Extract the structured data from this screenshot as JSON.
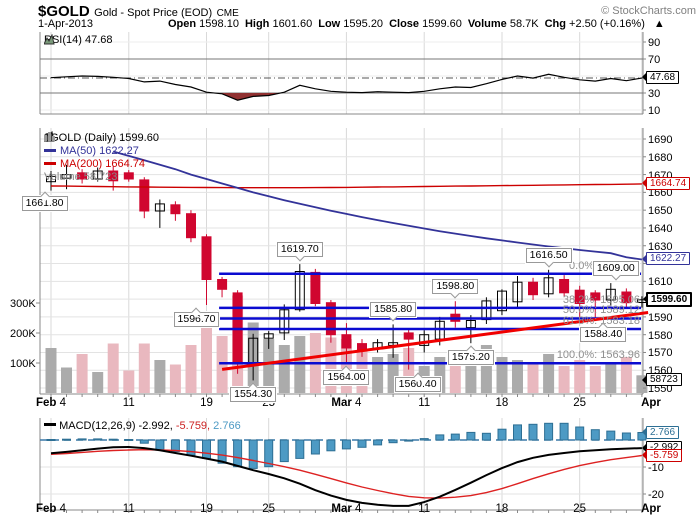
{
  "header": {
    "symbol": "$GOLD",
    "description": "Gold - Spot Price (EOD)",
    "exchange": "CME",
    "credit": "© StockCharts.com",
    "date": "1-Apr-2013",
    "quote": [
      {
        "label": "Open",
        "value": "1598.10"
      },
      {
        "label": "High",
        "value": "1601.60"
      },
      {
        "label": "Low",
        "value": "1595.20"
      },
      {
        "label": "Close",
        "value": "1599.60"
      },
      {
        "label": "Volume",
        "value": "58.7K"
      },
      {
        "label": "Chg",
        "value": "+2.50 (+0.16%)"
      }
    ],
    "change_arrow": "▲"
  },
  "rsi_panel": {
    "label": "RSI(14) 47.68",
    "value_box": "47.68",
    "y_labels": [
      90,
      70,
      30,
      10
    ]
  },
  "main_panel": {
    "legend": {
      "symbol": "$GOLD (Daily) 1599.60",
      "ma50": "MA(50) 1622.27",
      "ma200": "MA(200) 1664.74",
      "volume": "Volume 58,723"
    },
    "y_labels": [
      1690,
      1680,
      1670,
      1660,
      1650,
      1640,
      1630,
      1610,
      1590,
      1580,
      1570,
      1560,
      1550
    ],
    "volume_labels": [
      "300K",
      "200K",
      "100K"
    ],
    "axis_boxes": [
      {
        "text": "1664.74",
        "color": "#cc0000",
        "price": 1664.74,
        "bold": false
      },
      {
        "text": "1622.27",
        "color": "#333399",
        "price": 1622.27,
        "bold": false
      },
      {
        "text": "1599.60",
        "color": "#000000",
        "price": 1599.6,
        "bold": true
      },
      {
        "text": "58723",
        "color": "#000000",
        "price": null,
        "y": 380,
        "bold": false
      }
    ]
  },
  "macd_panel": {
    "label": "MACD(12,26,9)",
    "macd_value": "-2.992,",
    "signal_value": "-5.759,",
    "hist_value": "2.766",
    "axis_boxes": [
      {
        "text": "2.766",
        "color": "#2d6f94",
        "value": 2.766
      },
      {
        "text": "-2.992",
        "color": "#000000",
        "value": -2.992
      },
      {
        "text": "-5.759",
        "color": "#cc0000",
        "value": -5.759
      }
    ],
    "y_labels": [
      {
        "text": "-10",
        "value": -10
      },
      {
        "text": "-20",
        "value": -20
      }
    ]
  },
  "x_axis": {
    "labels": [
      {
        "month": "Feb",
        "day": "4",
        "week": 0
      },
      {
        "month": "",
        "day": "11",
        "week": 1
      },
      {
        "month": "",
        "day": "19",
        "week": 2
      },
      {
        "month": "",
        "day": "25",
        "week": 3
      },
      {
        "month": "Mar",
        "day": "4",
        "week": 4
      },
      {
        "month": "",
        "day": "11",
        "week": 5
      },
      {
        "month": "",
        "day": "18",
        "week": 6
      },
      {
        "month": "",
        "day": "25",
        "week": 7
      },
      {
        "month": "Apr",
        "day": "",
        "week": 8
      }
    ]
  },
  "colors": {
    "candle_up_stroke": "#000000",
    "candle_down": "#d0062f",
    "ma50": "#333399",
    "ma200": "#cc0000",
    "fib_line": "#0b0bd0",
    "trendline": "#f00000",
    "vol_up": "#ababab",
    "vol_down": "#e9b8bf",
    "macd_hist": "#4d9ac4",
    "macd_hist_border": "#2d6f94",
    "macd_line": "#000000",
    "macd_signal": "#dd2222",
    "rsi_line": "#000000",
    "rsi_fill": "#903030",
    "grid": "#e3e3e3",
    "grid_v": "#d9d9d9",
    "axis": "#888888"
  },
  "chart_data": [
    {
      "type": "line",
      "name": "RSI(14)",
      "ylim": [
        10,
        90
      ],
      "levels": [
        70,
        30
      ],
      "last": 47.68,
      "values": [
        48,
        49,
        50,
        49.5,
        48.5,
        47,
        43,
        44,
        40,
        37,
        31,
        29,
        21.5,
        26,
        27,
        31,
        39,
        35,
        32,
        31,
        30.5,
        31.5,
        31,
        30.5,
        32,
        35,
        37,
        36.5,
        41,
        46,
        50,
        47.5,
        52,
        48.5,
        45.5,
        44,
        47,
        44.5,
        47.68
      ]
    },
    {
      "type": "candlestick",
      "name": "$GOLD Daily",
      "title": "$GOLD (Daily) 1599.60",
      "ylim": [
        1550,
        1690
      ],
      "dates": [
        "Feb 4",
        "Feb 5",
        "Feb 6",
        "Feb 7",
        "Feb 8",
        "Feb 11",
        "Feb 12",
        "Feb 13",
        "Feb 14",
        "Feb 15",
        "Feb 19",
        "Feb 20",
        "Feb 21",
        "Feb 22",
        "Feb 25",
        "Feb 26",
        "Feb 27",
        "Feb 28",
        "Mar 1",
        "Mar 4",
        "Mar 5",
        "Mar 6",
        "Mar 7",
        "Mar 8",
        "Mar 11",
        "Mar 12",
        "Mar 13",
        "Mar 14",
        "Mar 15",
        "Mar 18",
        "Mar 19",
        "Mar 20",
        "Mar 21",
        "Mar 22",
        "Mar 25",
        "Mar 26",
        "Mar 27",
        "Mar 28",
        "Apr 1"
      ],
      "ohlc": [
        [
          1666,
          1672,
          1661,
          1669
        ],
        [
          1668,
          1675.5,
          1661.8,
          1670
        ],
        [
          1671,
          1673,
          1665,
          1667.5
        ],
        [
          1667.5,
          1674,
          1666,
          1672
        ],
        [
          1672,
          1674.5,
          1661,
          1666.5
        ],
        [
          1671,
          1672.5,
          1666,
          1667.5
        ],
        [
          1667,
          1668.5,
          1645.5,
          1649.5
        ],
        [
          1649.5,
          1656,
          1640,
          1653.5
        ],
        [
          1653,
          1655,
          1644,
          1648
        ],
        [
          1648,
          1650,
          1632,
          1634.5
        ],
        [
          1635,
          1636.5,
          1596.7,
          1611
        ],
        [
          1611,
          1612.5,
          1601,
          1605.5
        ],
        [
          1603.5,
          1605,
          1558,
          1564.5
        ],
        [
          1564,
          1580.5,
          1554.3,
          1578
        ],
        [
          1578,
          1582,
          1572,
          1580.5
        ],
        [
          1581,
          1597,
          1577,
          1594
        ],
        [
          1594,
          1619.7,
          1593,
          1615.5
        ],
        [
          1615,
          1617,
          1596,
          1597.5
        ],
        [
          1598,
          1599.5,
          1575.5,
          1580
        ],
        [
          1580,
          1586.5,
          1564,
          1572.5
        ],
        [
          1575,
          1577.5,
          1567.5,
          1571.5
        ],
        [
          1572,
          1577.5,
          1570,
          1575.5
        ],
        [
          1574,
          1585.8,
          1567,
          1575.5
        ],
        [
          1581,
          1583,
          1560.4,
          1577.5
        ],
        [
          1574,
          1582.5,
          1570,
          1580
        ],
        [
          1577.5,
          1590,
          1574,
          1587.5
        ],
        [
          1591.5,
          1598.8,
          1584,
          1587.5
        ],
        [
          1584,
          1591,
          1575.2,
          1588
        ],
        [
          1588.5,
          1601,
          1586,
          1599
        ],
        [
          1593.5,
          1605.5,
          1591,
          1604.5
        ],
        [
          1598.5,
          1613,
          1595,
          1609.5
        ],
        [
          1609.5,
          1612,
          1599.5,
          1602.5
        ],
        [
          1603,
          1616.5,
          1601,
          1612
        ],
        [
          1611,
          1613.5,
          1601.5,
          1603.5
        ],
        [
          1605,
          1607.5,
          1590,
          1597.5
        ],
        [
          1603.5,
          1605,
          1588.4,
          1599.5
        ],
        [
          1599.5,
          1609,
          1596.5,
          1605.5
        ],
        [
          1604,
          1606,
          1594.5,
          1598
        ],
        [
          1598.1,
          1601.6,
          1595.2,
          1599.6
        ]
      ],
      "volume_k": [
        150,
        85,
        130,
        70,
        165,
        75,
        165,
        110,
        95,
        160,
        220,
        190,
        325,
        235,
        180,
        160,
        190,
        200,
        185,
        180,
        140,
        120,
        130,
        150,
        90,
        120,
        100,
        110,
        160,
        120,
        110,
        100,
        130,
        90,
        110,
        90,
        95,
        120,
        59
      ],
      "last_volume": 58723,
      "ma50": [
        null,
        null,
        null,
        null,
        1683,
        1680.5,
        1678,
        1675.5,
        1673,
        1670,
        1667.5,
        1665,
        1662.5,
        1660,
        1657.8,
        1655.6,
        1653.6,
        1651.6,
        1649.7,
        1647.9,
        1646.1,
        1644.4,
        1642.8,
        1641.2,
        1639.7,
        1638.2,
        1636.8,
        1635.5,
        1634.2,
        1633,
        1631.8,
        1630.7,
        1629.6,
        1628.6,
        1627.6,
        1626.7,
        1625.8,
        1623.5,
        1622.27
      ],
      "ma200": [
        1663.6,
        1663.5,
        1663.4,
        1663.3,
        1663.2,
        1663.1,
        1663,
        1662.9,
        1662.85,
        1662.8,
        1662.75,
        1662.7,
        1662.65,
        1662.6,
        1662.6,
        1662.6,
        1662.65,
        1662.7,
        1662.75,
        1662.8,
        1662.9,
        1663,
        1663.1,
        1663.2,
        1663.3,
        1663.4,
        1663.5,
        1663.6,
        1663.7,
        1663.8,
        1663.9,
        1664,
        1664.1,
        1664.2,
        1664.3,
        1664.4,
        1664.5,
        1664.6,
        1664.74
      ],
      "fibonacci": {
        "start_index": 11,
        "levels": [
          {
            "pct": "0.0%",
            "value": 1614.28
          },
          {
            "pct": "38.2%",
            "value": 1595.06
          },
          {
            "pct": "50.0%",
            "value": 1589.12
          },
          {
            "pct": "61.8%",
            "value": 1583.18
          },
          {
            "pct": "100.0%",
            "value": 1563.96
          }
        ]
      },
      "trendline": {
        "from_index": 11,
        "from_price": 1560.5,
        "to_index": 38.4,
        "to_price": 1592.5
      },
      "annotations": [
        {
          "text": "1661.80",
          "index": 1,
          "position": "below",
          "dx": -22
        },
        {
          "text": "1596.70",
          "index": 10,
          "position": "below",
          "dx": -10
        },
        {
          "text": "1554.30",
          "index": 13,
          "position": "below",
          "dx": 0
        },
        {
          "text": "1619.70",
          "index": 16,
          "position": "above",
          "dx": 0
        },
        {
          "text": "1585.80",
          "index": 22,
          "position": "above",
          "dx": 0
        },
        {
          "text": "1564.00",
          "index": 19,
          "position": "below",
          "dx": 0
        },
        {
          "text": "1560.40",
          "index": 23,
          "position": "below",
          "dx": 9
        },
        {
          "text": "1575.20",
          "index": 27,
          "position": "below",
          "dx": 0
        },
        {
          "text": "1598.80",
          "index": 26,
          "position": "above",
          "dx": 0
        },
        {
          "text": "1616.50",
          "index": 32,
          "position": "above",
          "dx": 0
        },
        {
          "text": "1609.00",
          "index": 36,
          "position": "above",
          "dx": 5
        },
        {
          "text": "1588.40",
          "index": 35,
          "position": "below",
          "dx": 8
        }
      ]
    },
    {
      "type": "macd",
      "name": "MACD(12,26,9)",
      "ylim": [
        -28,
        8
      ],
      "last": {
        "macd": -2.992,
        "signal": -5.759,
        "hist": 2.766
      },
      "macd": [
        -4.9,
        -4.4,
        -3.8,
        -3.2,
        -2.7,
        -2.6,
        -3,
        -3.8,
        -4.8,
        -5.8,
        -6.9,
        -8,
        -9.6,
        -11.2,
        -12.6,
        -14.2,
        -16.2,
        -18.6,
        -20.6,
        -22.2,
        -23.3,
        -24,
        -24.4,
        -24.4,
        -23,
        -21,
        -18.5,
        -15.8,
        -13,
        -10.4,
        -8.2,
        -6.6,
        -5.5,
        -4.8,
        -4.2,
        -3.8,
        -3.4,
        -3.2,
        -2.992
      ],
      "signal": [
        -5.3,
        -5,
        -4.6,
        -4.2,
        -3.9,
        -3.7,
        -3.6,
        -3.7,
        -3.9,
        -4.3,
        -4.9,
        -5.6,
        -6.5,
        -7.6,
        -8.7,
        -9.9,
        -11.2,
        -12.7,
        -14.3,
        -15.9,
        -17.4,
        -18.7,
        -19.9,
        -20.9,
        -21.4,
        -21.5,
        -21.2,
        -20.6,
        -19.5,
        -18,
        -16.2,
        -14.3,
        -12.5,
        -10.9,
        -9.5,
        -8.3,
        -7.3,
        -6.5,
        -5.759
      ],
      "hist": [
        0.2,
        0.3,
        0.4,
        0.4,
        0.3,
        0.2,
        -1.2,
        -3.7,
        -4.3,
        -5.6,
        -6.8,
        -8.6,
        -9.9,
        -10.5,
        -9.9,
        -8,
        -6.8,
        -5.2,
        -4,
        -3.3,
        -2.7,
        -1.8,
        -1,
        -0.4,
        0.5,
        1.9,
        2.2,
        2.8,
        2.5,
        4,
        5.6,
        5.8,
        6.2,
        6.2,
        4.8,
        3.8,
        3.3,
        2.6,
        2.766
      ]
    }
  ]
}
